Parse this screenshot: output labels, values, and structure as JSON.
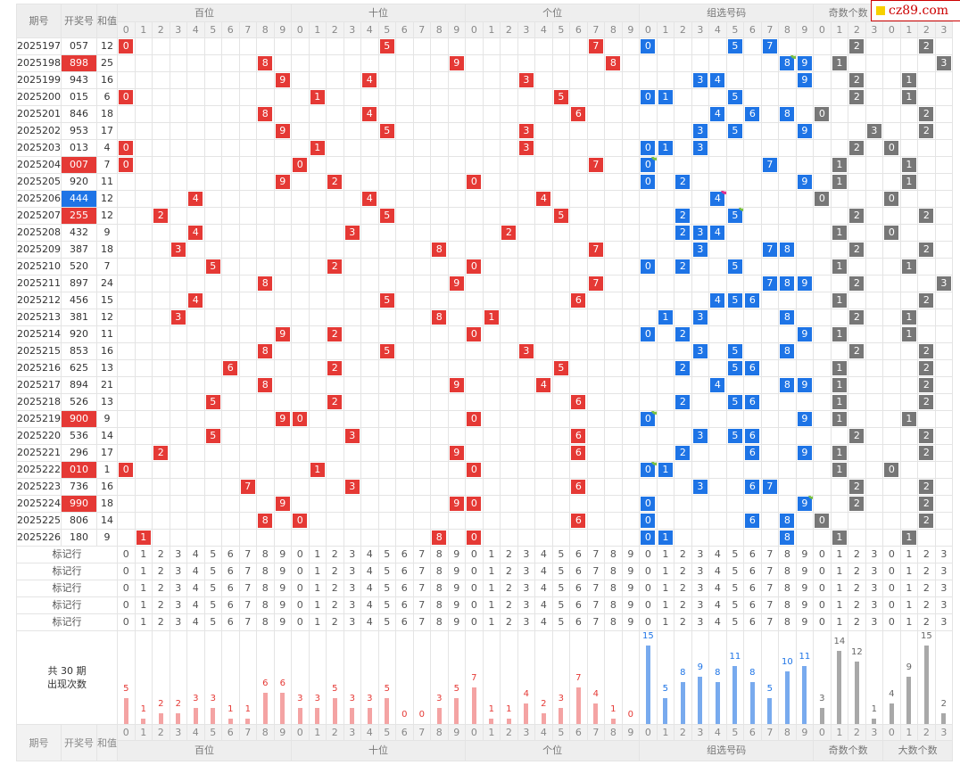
{
  "logo": {
    "text": "cz89.com"
  },
  "headers": {
    "issue": "期号",
    "draw": "开奖号",
    "sum": "和值",
    "groups": [
      "百位",
      "十位",
      "个位",
      "组选号码",
      "奇数个数",
      "大数个数"
    ]
  },
  "digits10": [
    "0",
    "1",
    "2",
    "3",
    "4",
    "5",
    "6",
    "7",
    "8",
    "9"
  ],
  "digits4": [
    "0",
    "1",
    "2",
    "3"
  ],
  "rows": [
    {
      "issue": "2025197",
      "draw": "057",
      "sum": "12",
      "hl": "",
      "odd": 2,
      "big": 2,
      "rep": {}
    },
    {
      "issue": "2025198",
      "draw": "898",
      "sum": "25",
      "hl": "red",
      "odd": 1,
      "big": 3,
      "rep": {
        "8": "2"
      }
    },
    {
      "issue": "2025199",
      "draw": "943",
      "sum": "16",
      "hl": "",
      "odd": 2,
      "big": 1,
      "rep": {}
    },
    {
      "issue": "2025200",
      "draw": "015",
      "sum": "6",
      "hl": "",
      "odd": 2,
      "big": 1,
      "rep": {}
    },
    {
      "issue": "2025201",
      "draw": "846",
      "sum": "18",
      "hl": "",
      "odd": 0,
      "big": 2,
      "rep": {}
    },
    {
      "issue": "2025202",
      "draw": "953",
      "sum": "17",
      "hl": "",
      "odd": 3,
      "big": 2,
      "rep": {}
    },
    {
      "issue": "2025203",
      "draw": "013",
      "sum": "4",
      "hl": "",
      "odd": 2,
      "big": 0,
      "rep": {}
    },
    {
      "issue": "2025204",
      "draw": "007",
      "sum": "7",
      "hl": "red",
      "odd": 1,
      "big": 1,
      "rep": {
        "0": "2"
      }
    },
    {
      "issue": "2025205",
      "draw": "920",
      "sum": "11",
      "hl": "",
      "odd": 1,
      "big": 1,
      "rep": {}
    },
    {
      "issue": "2025206",
      "draw": "444",
      "sum": "12",
      "hl": "blue",
      "odd": 0,
      "big": 0,
      "rep": {
        "4": "3"
      }
    },
    {
      "issue": "2025207",
      "draw": "255",
      "sum": "12",
      "hl": "red",
      "odd": 2,
      "big": 2,
      "rep": {
        "5": "2"
      }
    },
    {
      "issue": "2025208",
      "draw": "432",
      "sum": "9",
      "hl": "",
      "odd": 1,
      "big": 0,
      "rep": {}
    },
    {
      "issue": "2025209",
      "draw": "387",
      "sum": "18",
      "hl": "",
      "odd": 2,
      "big": 2,
      "rep": {}
    },
    {
      "issue": "2025210",
      "draw": "520",
      "sum": "7",
      "hl": "",
      "odd": 1,
      "big": 1,
      "rep": {}
    },
    {
      "issue": "2025211",
      "draw": "897",
      "sum": "24",
      "hl": "",
      "odd": 2,
      "big": 3,
      "rep": {}
    },
    {
      "issue": "2025212",
      "draw": "456",
      "sum": "15",
      "hl": "",
      "odd": 1,
      "big": 2,
      "rep": {}
    },
    {
      "issue": "2025213",
      "draw": "381",
      "sum": "12",
      "hl": "",
      "odd": 2,
      "big": 1,
      "rep": {}
    },
    {
      "issue": "2025214",
      "draw": "920",
      "sum": "11",
      "hl": "",
      "odd": 1,
      "big": 1,
      "rep": {}
    },
    {
      "issue": "2025215",
      "draw": "853",
      "sum": "16",
      "hl": "",
      "odd": 2,
      "big": 2,
      "rep": {}
    },
    {
      "issue": "2025216",
      "draw": "625",
      "sum": "13",
      "hl": "",
      "odd": 1,
      "big": 2,
      "rep": {}
    },
    {
      "issue": "2025217",
      "draw": "894",
      "sum": "21",
      "hl": "",
      "odd": 1,
      "big": 2,
      "rep": {}
    },
    {
      "issue": "2025218",
      "draw": "526",
      "sum": "13",
      "hl": "",
      "odd": 1,
      "big": 2,
      "rep": {}
    },
    {
      "issue": "2025219",
      "draw": "900",
      "sum": "9",
      "hl": "red",
      "odd": 1,
      "big": 1,
      "rep": {
        "0": "2"
      }
    },
    {
      "issue": "2025220",
      "draw": "536",
      "sum": "14",
      "hl": "",
      "odd": 2,
      "big": 2,
      "rep": {}
    },
    {
      "issue": "2025221",
      "draw": "296",
      "sum": "17",
      "hl": "",
      "odd": 1,
      "big": 2,
      "rep": {}
    },
    {
      "issue": "2025222",
      "draw": "010",
      "sum": "1",
      "hl": "red",
      "odd": 1,
      "big": 0,
      "rep": {
        "0": "2"
      }
    },
    {
      "issue": "2025223",
      "draw": "736",
      "sum": "16",
      "hl": "",
      "odd": 2,
      "big": 2,
      "rep": {}
    },
    {
      "issue": "2025224",
      "draw": "990",
      "sum": "18",
      "hl": "red",
      "odd": 2,
      "big": 2,
      "rep": {
        "9": "2"
      }
    },
    {
      "issue": "2025225",
      "draw": "806",
      "sum": "14",
      "hl": "",
      "odd": 0,
      "big": 2,
      "rep": {}
    },
    {
      "issue": "2025226",
      "draw": "180",
      "sum": "9",
      "hl": "",
      "odd": 1,
      "big": 1,
      "rep": {}
    }
  ],
  "marker_label": "标记行",
  "marker_rows": 5,
  "stats": {
    "label_line1": "共 30 期",
    "label_line2": "出现次数",
    "hundreds": [
      5,
      1,
      2,
      2,
      3,
      3,
      1,
      1,
      6,
      6
    ],
    "tens": [
      3,
      3,
      5,
      3,
      3,
      5,
      0,
      0,
      3,
      5
    ],
    "units": [
      7,
      1,
      1,
      4,
      2,
      3,
      7,
      4,
      1,
      0
    ],
    "group": [
      15,
      5,
      8,
      9,
      8,
      11,
      8,
      5,
      10,
      11
    ],
    "odd": [
      3,
      14,
      12,
      1
    ],
    "big": [
      4,
      9,
      15,
      2
    ]
  },
  "colors": {
    "red": "#e53935",
    "blue": "#1e74e6",
    "gray": "#777777",
    "bar_red": "#f4a3a3",
    "bar_blue": "#78aaee",
    "bar_gray": "#a8a8a8"
  }
}
